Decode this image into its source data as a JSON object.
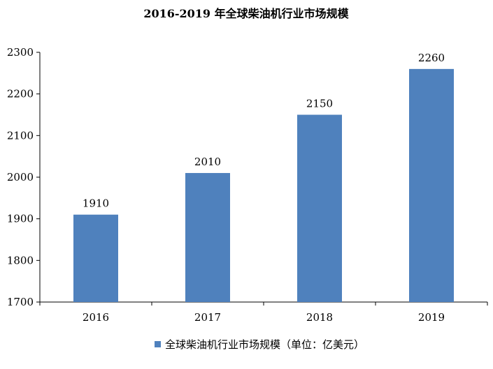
{
  "chart_data": {
    "type": "bar",
    "title": "2016-2019 年全球柴油机行业市场规模",
    "categories": [
      "2016",
      "2017",
      "2018",
      "2019"
    ],
    "series": [
      {
        "name": "全球柴油机行业市场规模（单位：亿美元）",
        "values": [
          1910,
          2010,
          2150,
          2260
        ],
        "color": "#4f81bd"
      }
    ],
    "ylim": [
      1700,
      2300
    ],
    "yticks": [
      1700,
      1800,
      1900,
      2000,
      2100,
      2200,
      2300
    ],
    "data_labels": [
      "1910",
      "2010",
      "2150",
      "2260"
    ],
    "legend_position": "bottom",
    "grid": false
  }
}
